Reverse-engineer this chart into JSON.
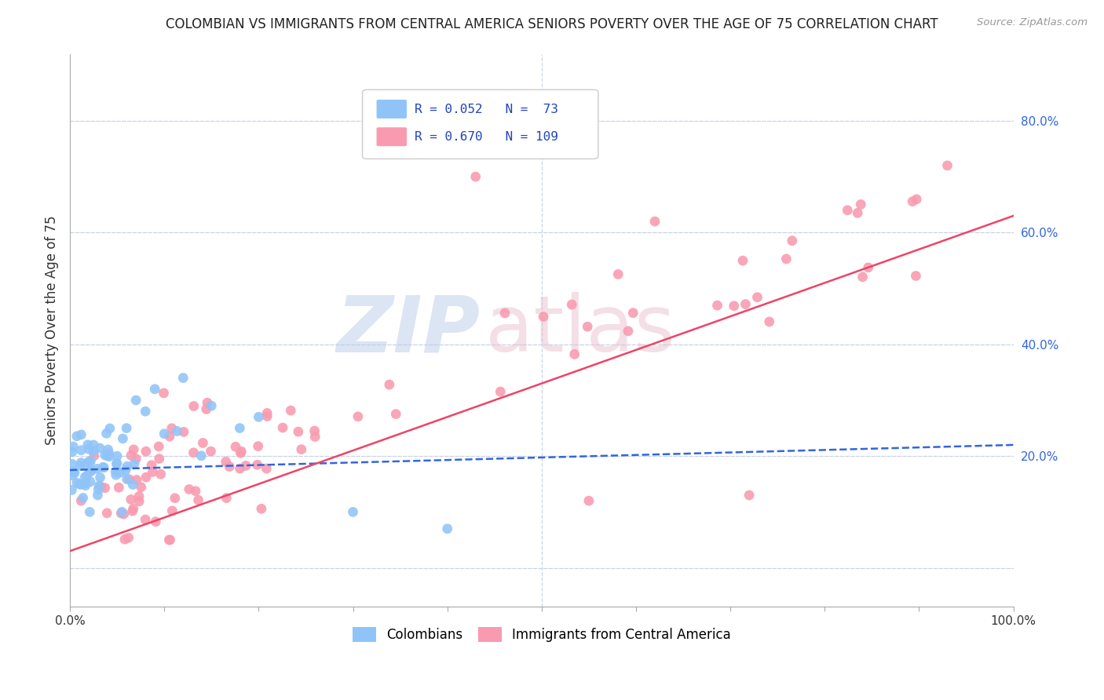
{
  "title": "COLOMBIAN VS IMMIGRANTS FROM CENTRAL AMERICA SENIORS POVERTY OVER THE AGE OF 75 CORRELATION CHART",
  "source": "Source: ZipAtlas.com",
  "ylabel": "Seniors Poverty Over the Age of 75",
  "xlim": [
    0.0,
    1.0
  ],
  "ylim": [
    -0.07,
    0.92
  ],
  "colombian_color": "#90c4f8",
  "central_america_color": "#f99ab0",
  "colombian_line_color": "#3366dd",
  "central_america_line_color": "#ee4466",
  "background_color": "#ffffff",
  "grid_color": "#c8d4e8",
  "title_color": "#222222",
  "source_color": "#999999",
  "legend_R_col": "R = 0.052",
  "legend_N_col": "73",
  "legend_R_ca": "R = 0.670",
  "legend_N_ca": "109"
}
